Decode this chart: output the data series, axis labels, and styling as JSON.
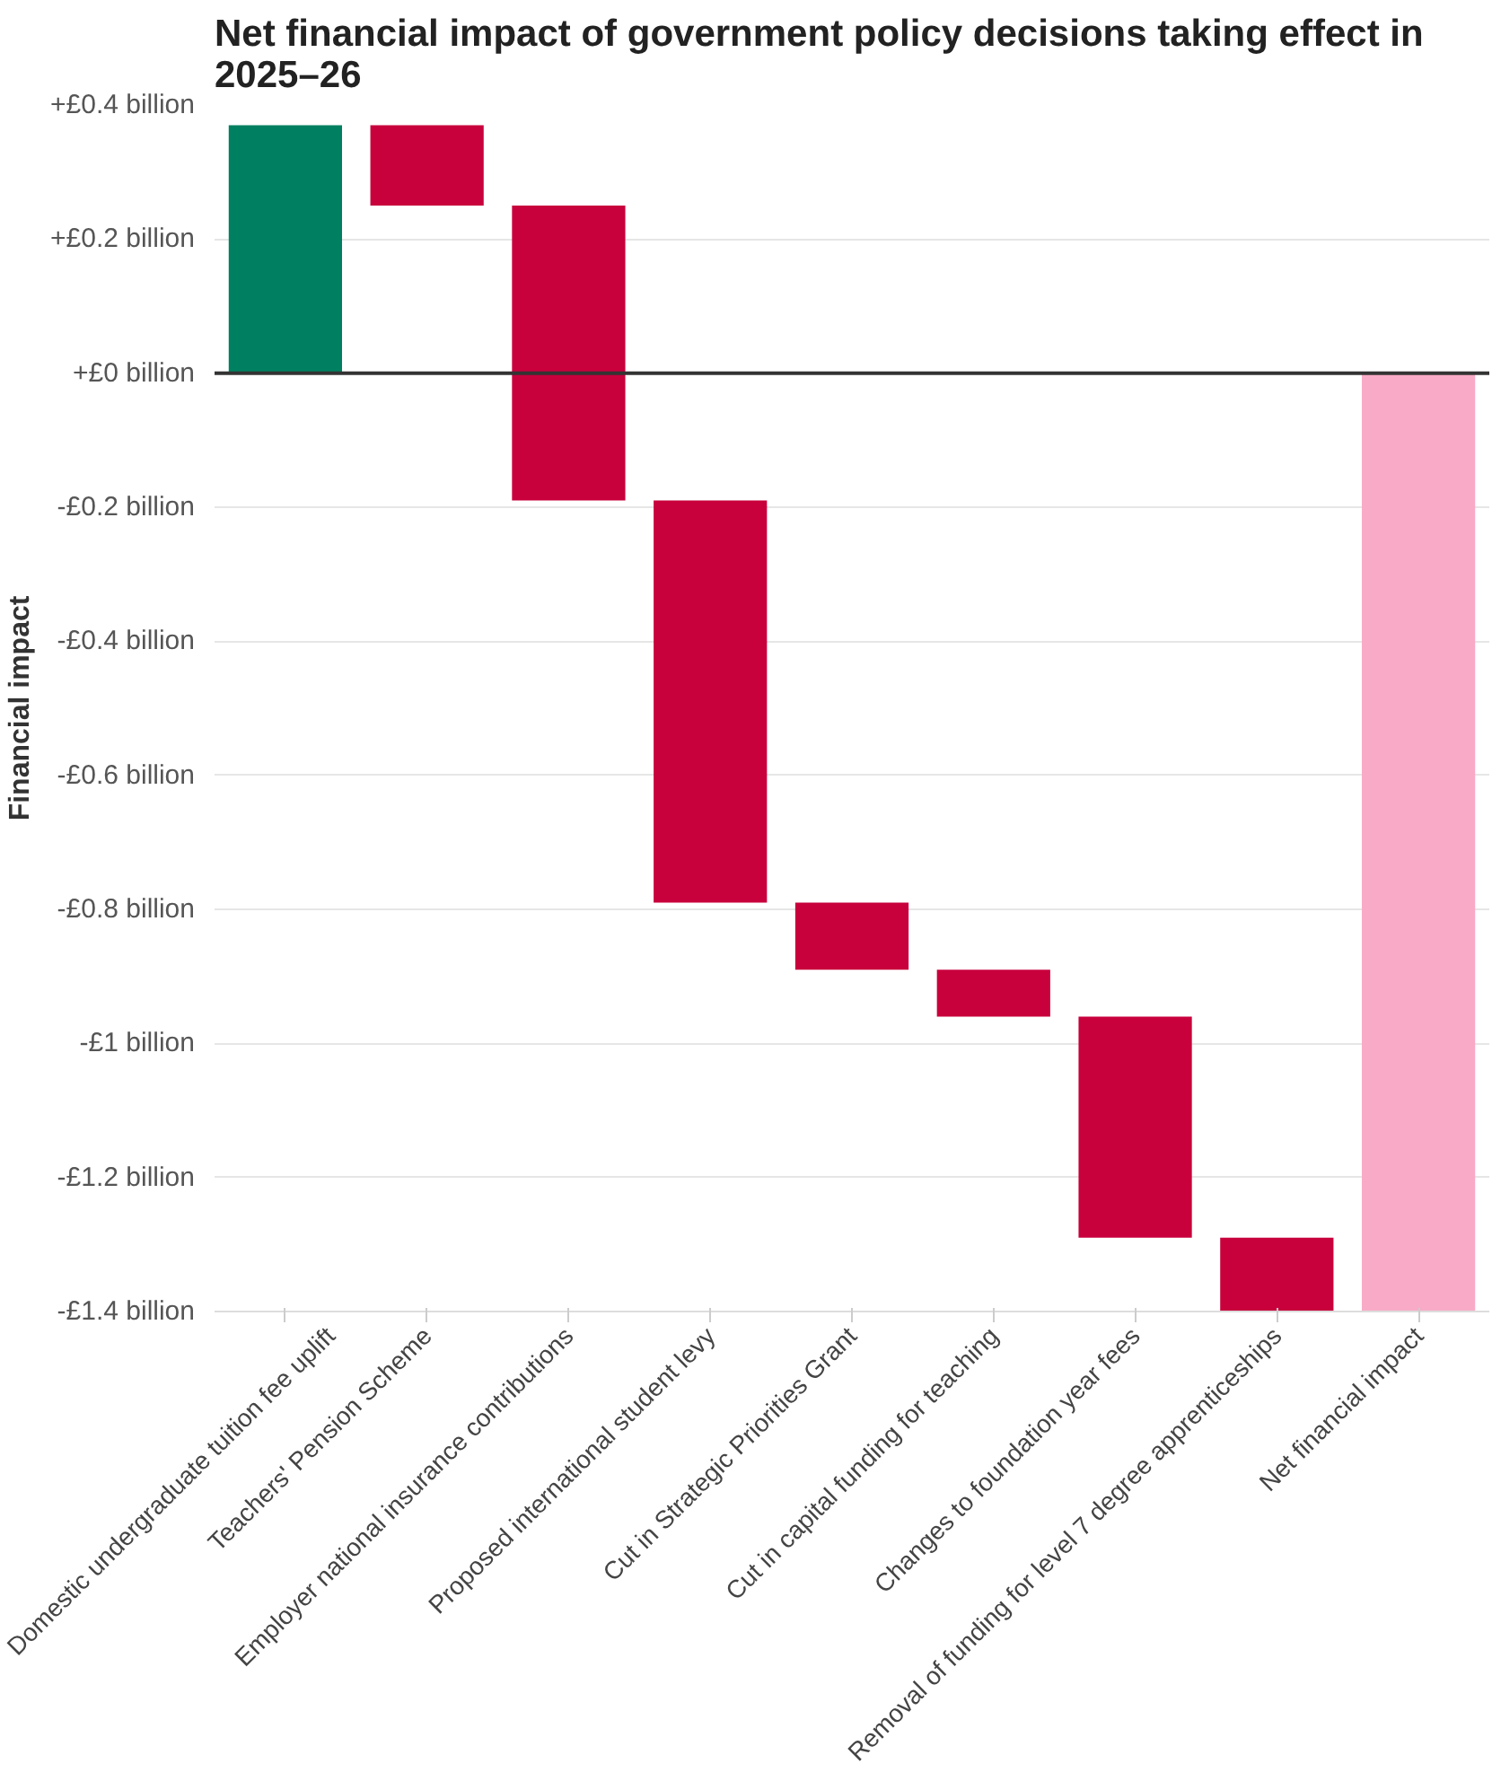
{
  "chart_data": {
    "type": "bar",
    "title": "Net financial impact of government policy decisions taking effect in 2025–26",
    "ylabel": "Financial impact",
    "categories": [
      "Domestic undergraduate tuition fee uplift",
      "Teachers' Pension Scheme",
      "Employer national insurance contributions",
      "Proposed international student levy",
      "Cut in Strategic Priorities Grant",
      "Cut in capital funding for teaching",
      "Changes to foundation year fees",
      "Removal of funding for level 7 degree apprenticeships",
      "Net financial impact"
    ],
    "values": [
      0.37,
      -0.12,
      -0.44,
      -0.6,
      -0.1,
      -0.07,
      -0.33,
      -0.11,
      -1.4
    ],
    "base": [
      0,
      0.37,
      0.25,
      -0.19,
      -0.79,
      -0.89,
      -0.96,
      -1.29,
      0
    ],
    "colors": [
      "#008060",
      "#c8003c",
      "#c8003c",
      "#c8003c",
      "#c8003c",
      "#c8003c",
      "#c8003c",
      "#c8003c",
      "#f8aac6"
    ],
    "ylim": [
      -1.4,
      0.4
    ],
    "yticks": [
      {
        "value": 0.4,
        "label": "+£0.4 billion"
      },
      {
        "value": 0.2,
        "label": "+£0.2 billion"
      },
      {
        "value": 0,
        "label": "+£0 billion"
      },
      {
        "value": -0.2,
        "label": "-£0.2 billion"
      },
      {
        "value": -0.4,
        "label": "-£0.4 billion"
      },
      {
        "value": -0.6,
        "label": "-£0.6 billion"
      },
      {
        "value": -0.8,
        "label": "-£0.8 billion"
      },
      {
        "value": -1,
        "label": "-£1 billion"
      },
      {
        "value": -1.2,
        "label": "-£1.2 billion"
      },
      {
        "value": -1.4,
        "label": "-£1.4 billion"
      }
    ],
    "ref_lines": [
      {
        "axis": "y",
        "value": 0,
        "color": "#333333"
      }
    ],
    "grid": "y"
  }
}
